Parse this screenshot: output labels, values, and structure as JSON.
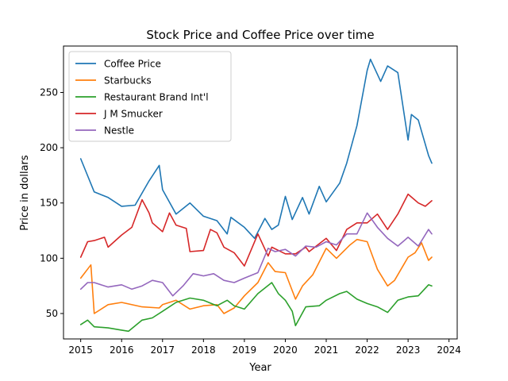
{
  "chart_data": {
    "type": "line",
    "title": "Stock Price and Coffee Price over time",
    "xlabel": "Year",
    "ylabel": "Price in dollars",
    "xlim": [
      2014.58,
      2024.2
    ],
    "ylim": [
      27,
      292
    ],
    "xticks": [
      2015,
      2016,
      2017,
      2018,
      2019,
      2020,
      2021,
      2022,
      2023,
      2024
    ],
    "yticks": [
      50,
      100,
      150,
      200,
      250
    ],
    "grid": false,
    "legend_position": "upper-left",
    "series": [
      {
        "name": "Coffee Price",
        "color": "#1f77b4",
        "x": [
          2015.0,
          2015.33,
          2015.67,
          2016.0,
          2016.33,
          2016.67,
          2016.92,
          2017.0,
          2017.33,
          2017.67,
          2018.0,
          2018.33,
          2018.58,
          2018.67,
          2019.0,
          2019.25,
          2019.5,
          2019.67,
          2019.83,
          2020.0,
          2020.17,
          2020.42,
          2020.58,
          2020.83,
          2021.0,
          2021.33,
          2021.5,
          2021.75,
          2022.0,
          2022.08,
          2022.33,
          2022.5,
          2022.75,
          2023.0,
          2023.08,
          2023.25,
          2023.5,
          2023.58
        ],
        "y": [
          190,
          160,
          155,
          147,
          148,
          170,
          184,
          162,
          140,
          150,
          138,
          134,
          122,
          137,
          128,
          118,
          136,
          126,
          130,
          156,
          135,
          155,
          140,
          165,
          151,
          168,
          186,
          220,
          270,
          280,
          260,
          274,
          268,
          207,
          230,
          225,
          193,
          186
        ]
      },
      {
        "name": "Starbucks",
        "color": "#ff7f0e",
        "x": [
          2015.0,
          2015.25,
          2015.33,
          2015.67,
          2016.0,
          2016.5,
          2016.92,
          2017.0,
          2017.33,
          2017.67,
          2018.0,
          2018.33,
          2018.5,
          2018.75,
          2019.0,
          2019.33,
          2019.58,
          2019.75,
          2020.0,
          2020.25,
          2020.42,
          2020.67,
          2021.0,
          2021.25,
          2021.58,
          2021.75,
          2022.0,
          2022.25,
          2022.5,
          2022.67,
          2023.0,
          2023.17,
          2023.33,
          2023.5,
          2023.58
        ],
        "y": [
          82,
          94,
          50,
          58,
          60,
          56,
          55,
          58,
          62,
          54,
          57,
          58,
          50,
          55,
          66,
          78,
          96,
          88,
          87,
          63,
          75,
          85,
          109,
          100,
          112,
          117,
          115,
          90,
          75,
          80,
          101,
          105,
          114,
          98,
          101
        ]
      },
      {
        "name": "Restaurant Brand Int'l",
        "color": "#2ca02c",
        "x": [
          2015.0,
          2015.17,
          2015.33,
          2015.67,
          2016.0,
          2016.17,
          2016.5,
          2016.75,
          2017.0,
          2017.33,
          2017.67,
          2018.0,
          2018.33,
          2018.58,
          2018.75,
          2019.0,
          2019.33,
          2019.67,
          2019.83,
          2020.0,
          2020.17,
          2020.25,
          2020.5,
          2020.83,
          2021.0,
          2021.33,
          2021.5,
          2021.75,
          2022.0,
          2022.25,
          2022.5,
          2022.75,
          2023.0,
          2023.25,
          2023.5,
          2023.58
        ],
        "y": [
          40,
          44,
          38,
          37,
          35,
          34,
          44,
          46,
          52,
          60,
          64,
          62,
          57,
          62,
          57,
          54,
          68,
          78,
          68,
          62,
          52,
          39,
          56,
          57,
          62,
          68,
          70,
          63,
          59,
          56,
          51,
          62,
          65,
          66,
          76,
          75
        ]
      },
      {
        "name": "J M Smucker",
        "color": "#d62728",
        "x": [
          2015.0,
          2015.17,
          2015.33,
          2015.58,
          2015.67,
          2016.0,
          2016.25,
          2016.5,
          2016.67,
          2016.75,
          2017.0,
          2017.17,
          2017.33,
          2017.58,
          2017.67,
          2018.0,
          2018.17,
          2018.33,
          2018.5,
          2018.75,
          2019.0,
          2019.33,
          2019.58,
          2019.67,
          2020.0,
          2020.25,
          2020.5,
          2020.58,
          2021.0,
          2021.25,
          2021.5,
          2021.75,
          2022.0,
          2022.25,
          2022.5,
          2022.75,
          2023.0,
          2023.25,
          2023.42,
          2023.58
        ],
        "y": [
          101,
          115,
          116,
          119,
          110,
          121,
          128,
          153,
          141,
          132,
          124,
          141,
          130,
          127,
          106,
          107,
          126,
          123,
          110,
          105,
          93,
          122,
          102,
          110,
          104,
          104,
          110,
          106,
          118,
          107,
          126,
          132,
          132,
          140,
          126,
          140,
          158,
          150,
          147,
          152
        ]
      },
      {
        "name": "Nestle",
        "color": "#9467bd",
        "x": [
          2015.0,
          2015.17,
          2015.33,
          2015.67,
          2016.0,
          2016.25,
          2016.5,
          2016.75,
          2017.0,
          2017.25,
          2017.5,
          2017.75,
          2018.0,
          2018.25,
          2018.5,
          2018.75,
          2019.0,
          2019.33,
          2019.58,
          2019.75,
          2020.0,
          2020.25,
          2020.5,
          2020.75,
          2021.0,
          2021.25,
          2021.5,
          2021.75,
          2022.0,
          2022.25,
          2022.5,
          2022.75,
          2023.0,
          2023.25,
          2023.5,
          2023.58
        ],
        "y": [
          72,
          78,
          78,
          74,
          76,
          72,
          75,
          80,
          78,
          66,
          75,
          86,
          84,
          86,
          80,
          78,
          82,
          87,
          109,
          106,
          108,
          102,
          111,
          110,
          115,
          112,
          122,
          122,
          141,
          128,
          118,
          111,
          119,
          111,
          126,
          122
        ]
      }
    ]
  }
}
